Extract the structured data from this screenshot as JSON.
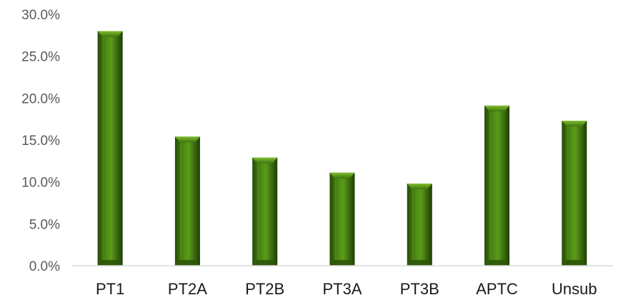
{
  "chart_data": {
    "type": "bar",
    "categories": [
      "PT1",
      "PT2A",
      "PT2B",
      "PT3A",
      "PT3B",
      "APTC",
      "Unsub"
    ],
    "values": [
      28.0,
      15.4,
      12.9,
      11.1,
      9.8,
      19.1,
      17.3
    ],
    "unit": "%",
    "ylim": [
      0,
      30
    ],
    "y_ticks": [
      "0.0%",
      "5.0%",
      "10.0%",
      "15.0%",
      "20.0%",
      "25.0%",
      "30.0%"
    ],
    "xlabel": "",
    "ylabel": "",
    "title": "",
    "grid": false,
    "legend": "none",
    "colors": {
      "bar_dark": "#1f3d04",
      "bar_mid": "#4d8a13",
      "bar_light": "#6fae25",
      "axis": "#d9d9d9"
    }
  }
}
